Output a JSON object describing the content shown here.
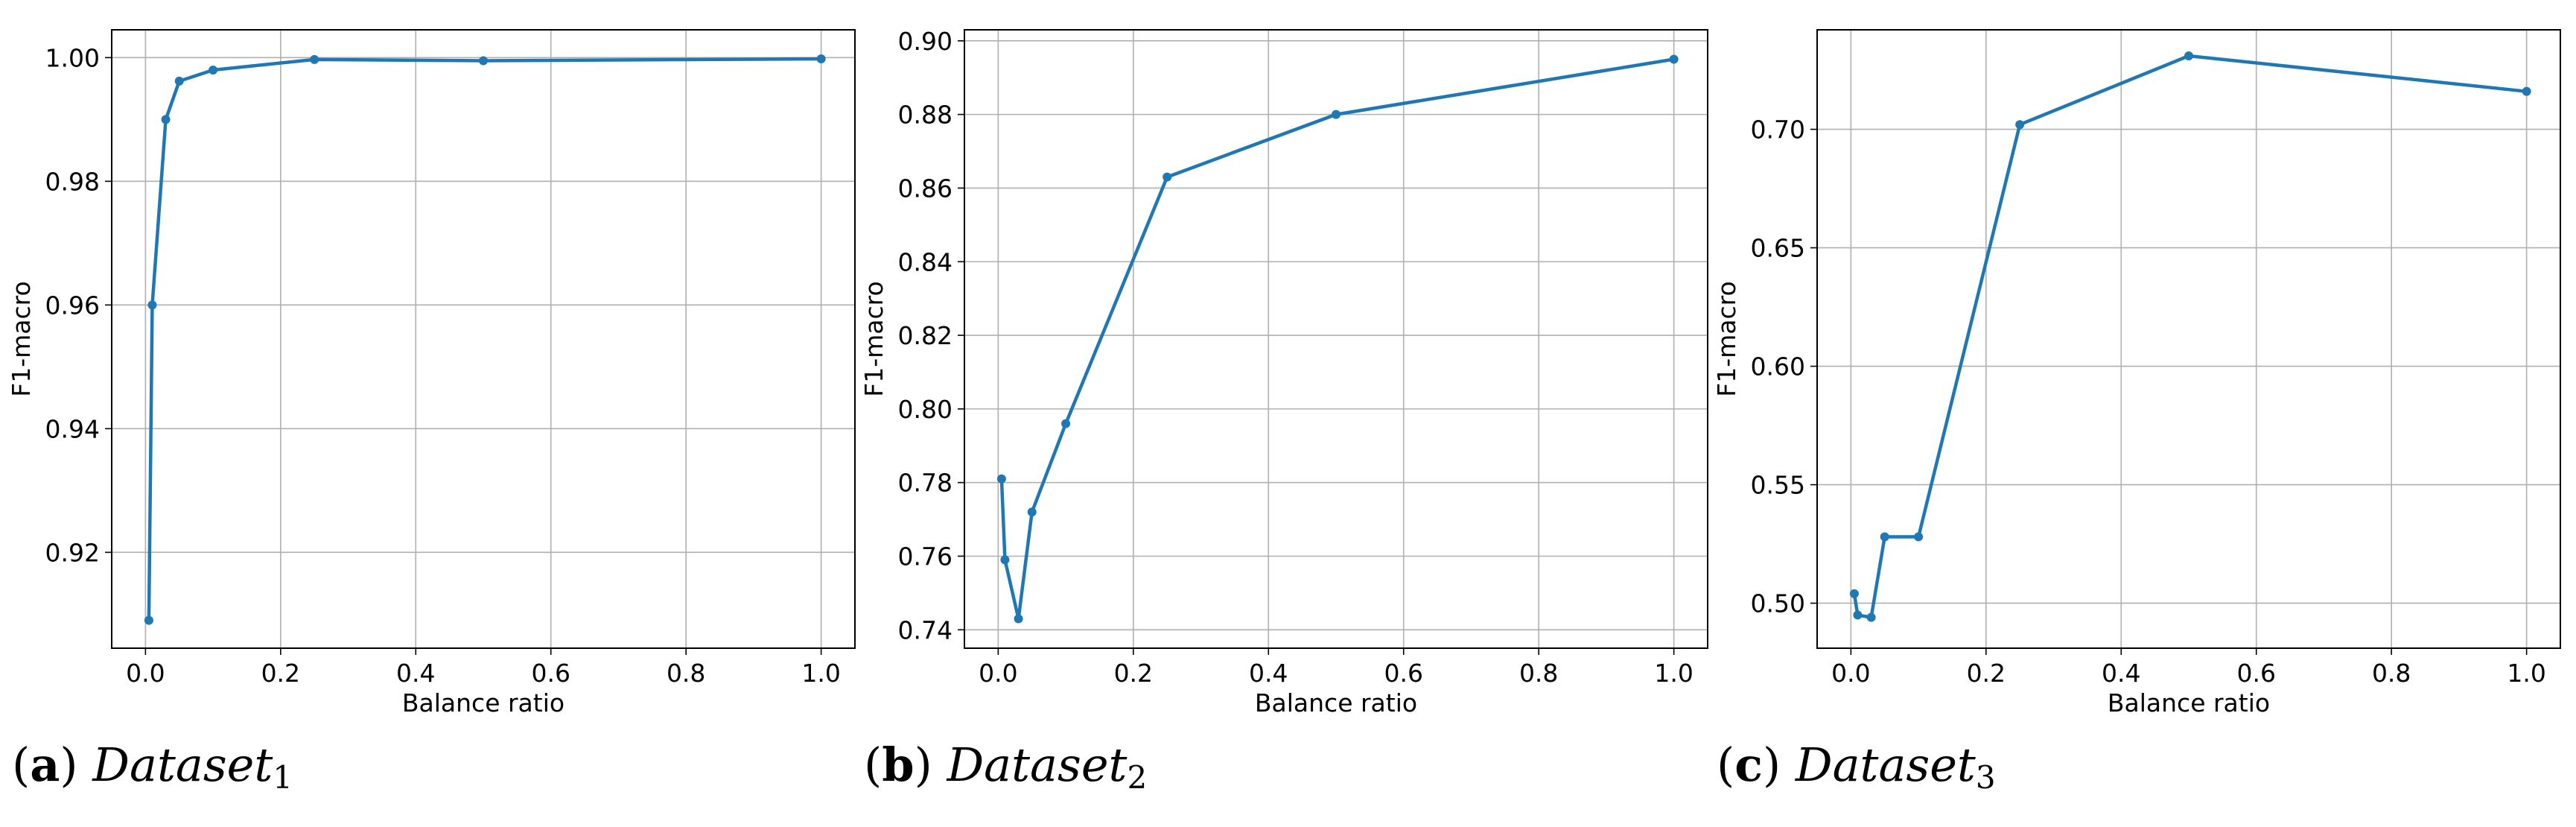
{
  "figure": {
    "panels": [
      {
        "caption": {
          "letter": "a",
          "name": "Dataset",
          "subscript": "1"
        },
        "chart_data": {
          "type": "line",
          "xlabel": "Balance ratio",
          "ylabel": "F1-macro",
          "xlim": [
            -0.05,
            1.05
          ],
          "ylim": [
            0.9045,
            1.0045
          ],
          "xticks": [
            0.0,
            0.2,
            0.4,
            0.6,
            0.8,
            1.0
          ],
          "xtick_labels": [
            "0.0",
            "0.2",
            "0.4",
            "0.6",
            "0.8",
            "1.0"
          ],
          "yticks": [
            0.92,
            0.94,
            0.96,
            0.98,
            1.0
          ],
          "ytick_labels": [
            "0.92",
            "0.94",
            "0.96",
            "0.98",
            "1.00"
          ],
          "grid": true,
          "color": "#1f77b4",
          "series": [
            {
              "x": [
                0.005,
                0.01,
                0.03,
                0.05,
                0.1,
                0.25,
                0.5,
                1.0
              ],
              "y": [
                0.909,
                0.96,
                0.99,
                0.9962,
                0.998,
                0.9997,
                0.9995,
                0.9998
              ]
            }
          ]
        }
      },
      {
        "caption": {
          "letter": "b",
          "name": "Dataset",
          "subscript": "2"
        },
        "chart_data": {
          "type": "line",
          "xlabel": "Balance ratio",
          "ylabel": "F1-macro",
          "xlim": [
            -0.05,
            1.05
          ],
          "ylim": [
            0.735,
            0.903
          ],
          "xticks": [
            0.0,
            0.2,
            0.4,
            0.6,
            0.8,
            1.0
          ],
          "xtick_labels": [
            "0.0",
            "0.2",
            "0.4",
            "0.6",
            "0.8",
            "1.0"
          ],
          "yticks": [
            0.74,
            0.76,
            0.78,
            0.8,
            0.82,
            0.84,
            0.86,
            0.88,
            0.9
          ],
          "ytick_labels": [
            "0.74",
            "0.76",
            "0.78",
            "0.80",
            "0.82",
            "0.84",
            "0.86",
            "0.88",
            "0.90"
          ],
          "grid": true,
          "color": "#1f77b4",
          "series": [
            {
              "x": [
                0.005,
                0.01,
                0.03,
                0.05,
                0.1,
                0.25,
                0.5,
                1.0
              ],
              "y": [
                0.781,
                0.759,
                0.743,
                0.772,
                0.796,
                0.863,
                0.88,
                0.895
              ]
            }
          ]
        }
      },
      {
        "caption": {
          "letter": "c",
          "name": "Dataset",
          "subscript": "3"
        },
        "chart_data": {
          "type": "line",
          "xlabel": "Balance ratio",
          "ylabel": "F1-macro",
          "xlim": [
            -0.05,
            1.05
          ],
          "ylim": [
            0.481,
            0.742
          ],
          "xticks": [
            0.0,
            0.2,
            0.4,
            0.6,
            0.8,
            1.0
          ],
          "xtick_labels": [
            "0.0",
            "0.2",
            "0.4",
            "0.6",
            "0.8",
            "1.0"
          ],
          "yticks": [
            0.5,
            0.55,
            0.6,
            0.65,
            0.7
          ],
          "ytick_labels": [
            "0.50",
            "0.55",
            "0.60",
            "0.65",
            "0.70"
          ],
          "grid": true,
          "color": "#1f77b4",
          "series": [
            {
              "x": [
                0.005,
                0.01,
                0.03,
                0.05,
                0.1,
                0.25,
                0.5,
                1.0
              ],
              "y": [
                0.504,
                0.495,
                0.494,
                0.528,
                0.528,
                0.702,
                0.731,
                0.716
              ]
            }
          ]
        }
      }
    ]
  }
}
